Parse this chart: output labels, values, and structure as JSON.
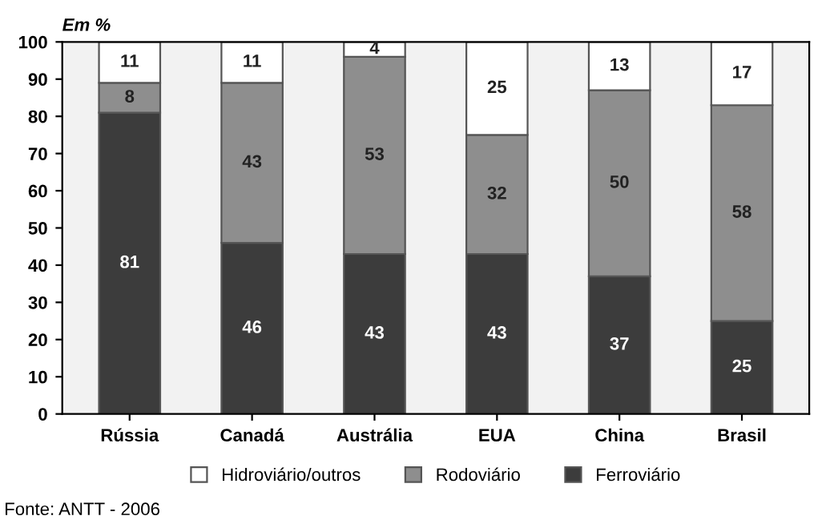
{
  "chart_data": {
    "type": "bar",
    "stacked": true,
    "ylabel": "Em %",
    "categories": [
      "Rússia",
      "Canadá",
      "Austrália",
      "EUA",
      "China",
      "Brasil"
    ],
    "series": [
      {
        "name": "Ferroviário",
        "color": "#3c3c3c",
        "values": [
          81,
          46,
          43,
          43,
          37,
          25
        ]
      },
      {
        "name": "Rodoviário",
        "color": "#8e8e8e",
        "values": [
          8,
          43,
          53,
          32,
          50,
          58
        ]
      },
      {
        "name": "Hidroviário/outros",
        "color": "#ffffff",
        "values": [
          11,
          11,
          4,
          25,
          13,
          17
        ]
      }
    ],
    "ylim": [
      0,
      100
    ],
    "yticks": [
      0,
      10,
      20,
      30,
      40,
      50,
      60,
      70,
      80,
      90,
      100
    ],
    "data_labels": true,
    "legend": "bottom",
    "grid": false,
    "annotations": [
      "Fonte: ANTT - 2006"
    ]
  }
}
